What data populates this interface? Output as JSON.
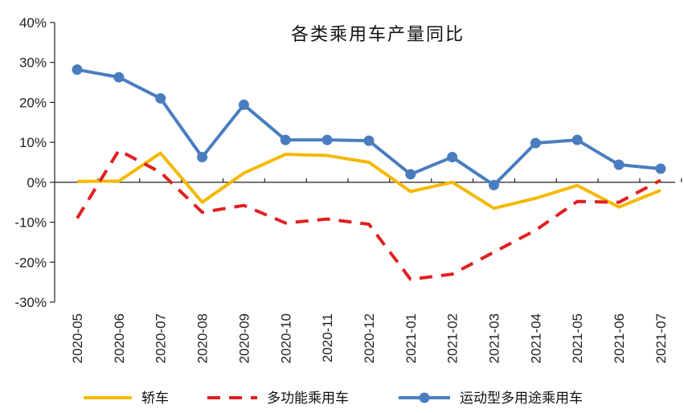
{
  "chart_data": {
    "type": "line",
    "title": "各类乘用车产量同比",
    "categories": [
      "2020-05",
      "2020-06",
      "2020-07",
      "2020-08",
      "2020-09",
      "2020-10",
      "2020-11",
      "2020-12",
      "2021-01",
      "2021-02",
      "2021-03",
      "2021-04",
      "2021-05",
      "2021-06",
      "2021-07"
    ],
    "ylim": [
      -30,
      40
    ],
    "yticks": [
      "40%",
      "30%",
      "20%",
      "10%",
      "0%",
      "-10%",
      "-20%",
      "-30%"
    ],
    "ytick_values": [
      40,
      30,
      20,
      10,
      0,
      -10,
      -20,
      -30
    ],
    "grid": false,
    "legend": "bottom",
    "series": [
      {
        "name": "轿车",
        "color": "#f5b800",
        "style": "solid",
        "values": [
          0.2,
          0.3,
          7.3,
          -5.0,
          2.3,
          7.0,
          6.7,
          5.0,
          -2.3,
          0.0,
          -6.5,
          -4.0,
          -0.8,
          -6.2,
          -2.0
        ]
      },
      {
        "name": "多功能乘用车",
        "color": "#e02020",
        "style": "dashed",
        "values": [
          -9.0,
          8.0,
          2.5,
          -7.5,
          -5.8,
          -10.2,
          -9.2,
          -10.5,
          -24.3,
          -23.0,
          -17.5,
          -12.0,
          -4.8,
          -5.0,
          0.5
        ]
      },
      {
        "name": "运动型多用途乘用车",
        "color": "#4a7dbf",
        "style": "solid-marker",
        "values": [
          28.2,
          26.3,
          21.0,
          6.3,
          19.4,
          10.6,
          10.6,
          10.4,
          2.0,
          6.3,
          -0.7,
          9.8,
          10.6,
          4.4,
          3.4
        ]
      }
    ]
  }
}
